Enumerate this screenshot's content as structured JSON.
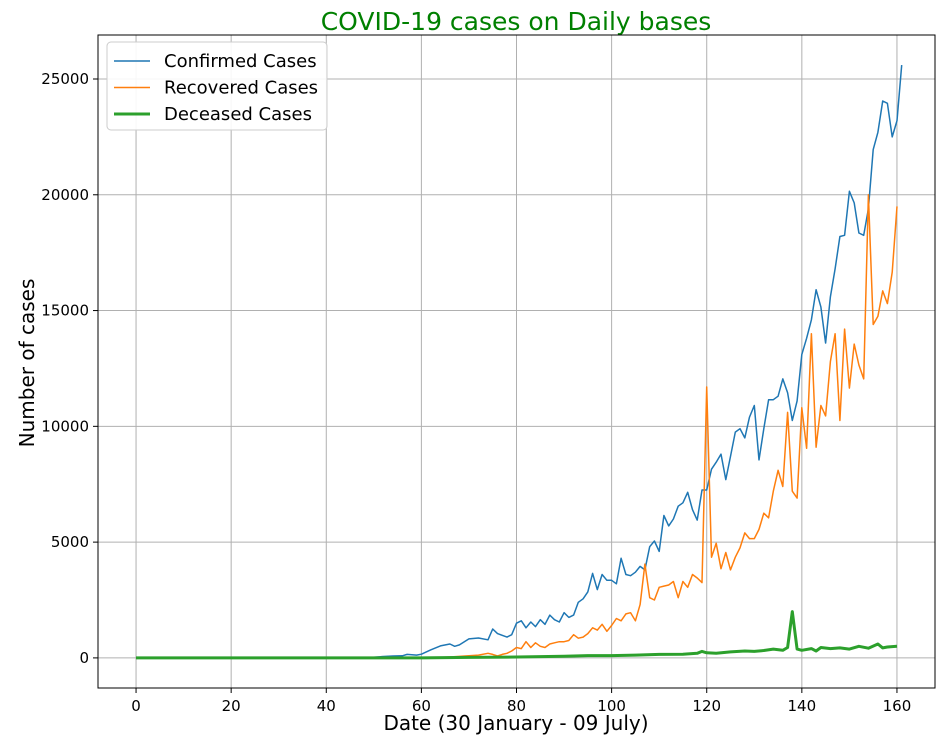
{
  "chart_data": {
    "type": "line",
    "title": "COVID-19 cases on Daily bases",
    "title_color": "#008000",
    "xlabel": "Date (30 January - 09 July)",
    "ylabel": "Number of cases",
    "xlim": [
      -8,
      168
    ],
    "ylim": [
      -1300,
      26900
    ],
    "xticks": [
      0,
      20,
      40,
      60,
      80,
      100,
      120,
      140,
      160
    ],
    "yticks": [
      0,
      5000,
      10000,
      15000,
      20000,
      25000
    ],
    "grid": true,
    "legend_position": "top-left",
    "series": [
      {
        "name": "Confirmed Cases",
        "color": "#1f77b4",
        "keypoints": [
          [
            0,
            0
          ],
          [
            48,
            0
          ],
          [
            50,
            30
          ],
          [
            52,
            60
          ],
          [
            54,
            80
          ],
          [
            56,
            90
          ],
          [
            57,
            150
          ],
          [
            59,
            120
          ],
          [
            60,
            160
          ],
          [
            62,
            350
          ],
          [
            64,
            520
          ],
          [
            66,
            600
          ],
          [
            67,
            500
          ],
          [
            68,
            560
          ],
          [
            70,
            820
          ],
          [
            72,
            860
          ],
          [
            74,
            780
          ],
          [
            75,
            1250
          ],
          [
            76,
            1050
          ],
          [
            78,
            900
          ],
          [
            79,
            1000
          ],
          [
            80,
            1500
          ],
          [
            81,
            1600
          ],
          [
            82,
            1300
          ],
          [
            83,
            1550
          ],
          [
            84,
            1350
          ],
          [
            85,
            1650
          ],
          [
            86,
            1450
          ],
          [
            87,
            1850
          ],
          [
            88,
            1650
          ],
          [
            89,
            1550
          ],
          [
            90,
            1950
          ],
          [
            91,
            1750
          ],
          [
            92,
            1850
          ],
          [
            93,
            2400
          ],
          [
            94,
            2550
          ],
          [
            95,
            2850
          ],
          [
            96,
            3650
          ],
          [
            97,
            2950
          ],
          [
            98,
            3600
          ],
          [
            99,
            3350
          ],
          [
            100,
            3350
          ],
          [
            101,
            3200
          ],
          [
            102,
            4300
          ],
          [
            103,
            3600
          ],
          [
            104,
            3550
          ],
          [
            105,
            3700
          ],
          [
            106,
            3950
          ],
          [
            107,
            3800
          ],
          [
            108,
            4800
          ],
          [
            109,
            5050
          ],
          [
            110,
            4600
          ],
          [
            111,
            6150
          ],
          [
            112,
            5700
          ],
          [
            113,
            6000
          ],
          [
            114,
            6550
          ],
          [
            115,
            6700
          ],
          [
            116,
            7150
          ],
          [
            117,
            6400
          ],
          [
            118,
            5950
          ],
          [
            119,
            7250
          ],
          [
            120,
            7250
          ],
          [
            121,
            8150
          ],
          [
            122,
            8450
          ],
          [
            123,
            8800
          ],
          [
            124,
            7700
          ],
          [
            125,
            8700
          ],
          [
            126,
            9750
          ],
          [
            127,
            9900
          ],
          [
            128,
            9500
          ],
          [
            129,
            10400
          ],
          [
            130,
            10900
          ],
          [
            131,
            8550
          ],
          [
            132,
            9900
          ],
          [
            133,
            11150
          ],
          [
            134,
            11150
          ],
          [
            135,
            11300
          ],
          [
            136,
            12050
          ],
          [
            137,
            11450
          ],
          [
            138,
            10250
          ],
          [
            139,
            11100
          ],
          [
            140,
            13100
          ],
          [
            141,
            13800
          ],
          [
            142,
            14600
          ],
          [
            143,
            15900
          ],
          [
            144,
            15150
          ],
          [
            145,
            13600
          ],
          [
            146,
            15600
          ],
          [
            147,
            16800
          ],
          [
            148,
            18200
          ],
          [
            149,
            18250
          ],
          [
            150,
            20150
          ],
          [
            151,
            19650
          ],
          [
            152,
            18350
          ],
          [
            153,
            18250
          ],
          [
            154,
            19400
          ],
          [
            155,
            21950
          ],
          [
            156,
            22700
          ],
          [
            157,
            24050
          ],
          [
            158,
            23950
          ],
          [
            159,
            22500
          ],
          [
            160,
            23200
          ],
          [
            161,
            25600
          ]
        ]
      },
      {
        "name": "Recovered Cases",
        "color": "#ff7f0e",
        "keypoints": [
          [
            0,
            0
          ],
          [
            62,
            0
          ],
          [
            66,
            40
          ],
          [
            70,
            90
          ],
          [
            72,
            120
          ],
          [
            74,
            200
          ],
          [
            75,
            150
          ],
          [
            76,
            80
          ],
          [
            77,
            150
          ],
          [
            78,
            200
          ],
          [
            79,
            300
          ],
          [
            80,
            450
          ],
          [
            81,
            400
          ],
          [
            82,
            700
          ],
          [
            83,
            450
          ],
          [
            84,
            650
          ],
          [
            85,
            500
          ],
          [
            86,
            450
          ],
          [
            87,
            600
          ],
          [
            88,
            650
          ],
          [
            89,
            700
          ],
          [
            90,
            700
          ],
          [
            91,
            750
          ],
          [
            92,
            1000
          ],
          [
            93,
            850
          ],
          [
            94,
            900
          ],
          [
            95,
            1050
          ],
          [
            96,
            1300
          ],
          [
            97,
            1200
          ],
          [
            98,
            1450
          ],
          [
            99,
            1150
          ],
          [
            100,
            1400
          ],
          [
            101,
            1700
          ],
          [
            102,
            1600
          ],
          [
            103,
            1900
          ],
          [
            104,
            1950
          ],
          [
            105,
            1600
          ],
          [
            106,
            2300
          ],
          [
            107,
            4050
          ],
          [
            108,
            2600
          ],
          [
            109,
            2500
          ],
          [
            110,
            3050
          ],
          [
            111,
            3100
          ],
          [
            112,
            3150
          ],
          [
            113,
            3300
          ],
          [
            114,
            2600
          ],
          [
            115,
            3300
          ],
          [
            116,
            3050
          ],
          [
            117,
            3600
          ],
          [
            118,
            3450
          ],
          [
            119,
            3250
          ],
          [
            120,
            11700
          ],
          [
            121,
            4350
          ],
          [
            122,
            4950
          ],
          [
            123,
            3850
          ],
          [
            124,
            4550
          ],
          [
            125,
            3800
          ],
          [
            126,
            4350
          ],
          [
            127,
            4750
          ],
          [
            128,
            5400
          ],
          [
            129,
            5150
          ],
          [
            130,
            5150
          ],
          [
            131,
            5550
          ],
          [
            132,
            6250
          ],
          [
            133,
            6050
          ],
          [
            134,
            7200
          ],
          [
            135,
            8100
          ],
          [
            136,
            7400
          ],
          [
            137,
            10600
          ],
          [
            138,
            7200
          ],
          [
            139,
            6900
          ],
          [
            140,
            10800
          ],
          [
            141,
            9050
          ],
          [
            142,
            14000
          ],
          [
            143,
            9100
          ],
          [
            144,
            10900
          ],
          [
            145,
            10450
          ],
          [
            146,
            12800
          ],
          [
            147,
            14000
          ],
          [
            148,
            10250
          ],
          [
            149,
            14200
          ],
          [
            150,
            11650
          ],
          [
            151,
            13550
          ],
          [
            152,
            12650
          ],
          [
            153,
            12050
          ],
          [
            154,
            20000
          ],
          [
            155,
            14400
          ],
          [
            156,
            14750
          ],
          [
            157,
            15850
          ],
          [
            158,
            15300
          ],
          [
            159,
            16650
          ],
          [
            160,
            19500
          ]
        ]
      },
      {
        "name": "Deceased Cases",
        "color": "#2ca02c",
        "keypoints": [
          [
            0,
            0
          ],
          [
            60,
            0
          ],
          [
            70,
            20
          ],
          [
            80,
            40
          ],
          [
            90,
            70
          ],
          [
            95,
            100
          ],
          [
            100,
            100
          ],
          [
            105,
            120
          ],
          [
            110,
            150
          ],
          [
            115,
            160
          ],
          [
            118,
            200
          ],
          [
            119,
            280
          ],
          [
            120,
            220
          ],
          [
            122,
            200
          ],
          [
            125,
            260
          ],
          [
            128,
            300
          ],
          [
            130,
            280
          ],
          [
            132,
            320
          ],
          [
            134,
            380
          ],
          [
            136,
            330
          ],
          [
            137,
            450
          ],
          [
            138,
            2000
          ],
          [
            139,
            380
          ],
          [
            140,
            330
          ],
          [
            142,
            400
          ],
          [
            143,
            300
          ],
          [
            144,
            450
          ],
          [
            146,
            400
          ],
          [
            148,
            430
          ],
          [
            150,
            380
          ],
          [
            152,
            500
          ],
          [
            154,
            420
          ],
          [
            156,
            600
          ],
          [
            157,
            430
          ],
          [
            158,
            470
          ],
          [
            160,
            500
          ]
        ]
      }
    ]
  }
}
